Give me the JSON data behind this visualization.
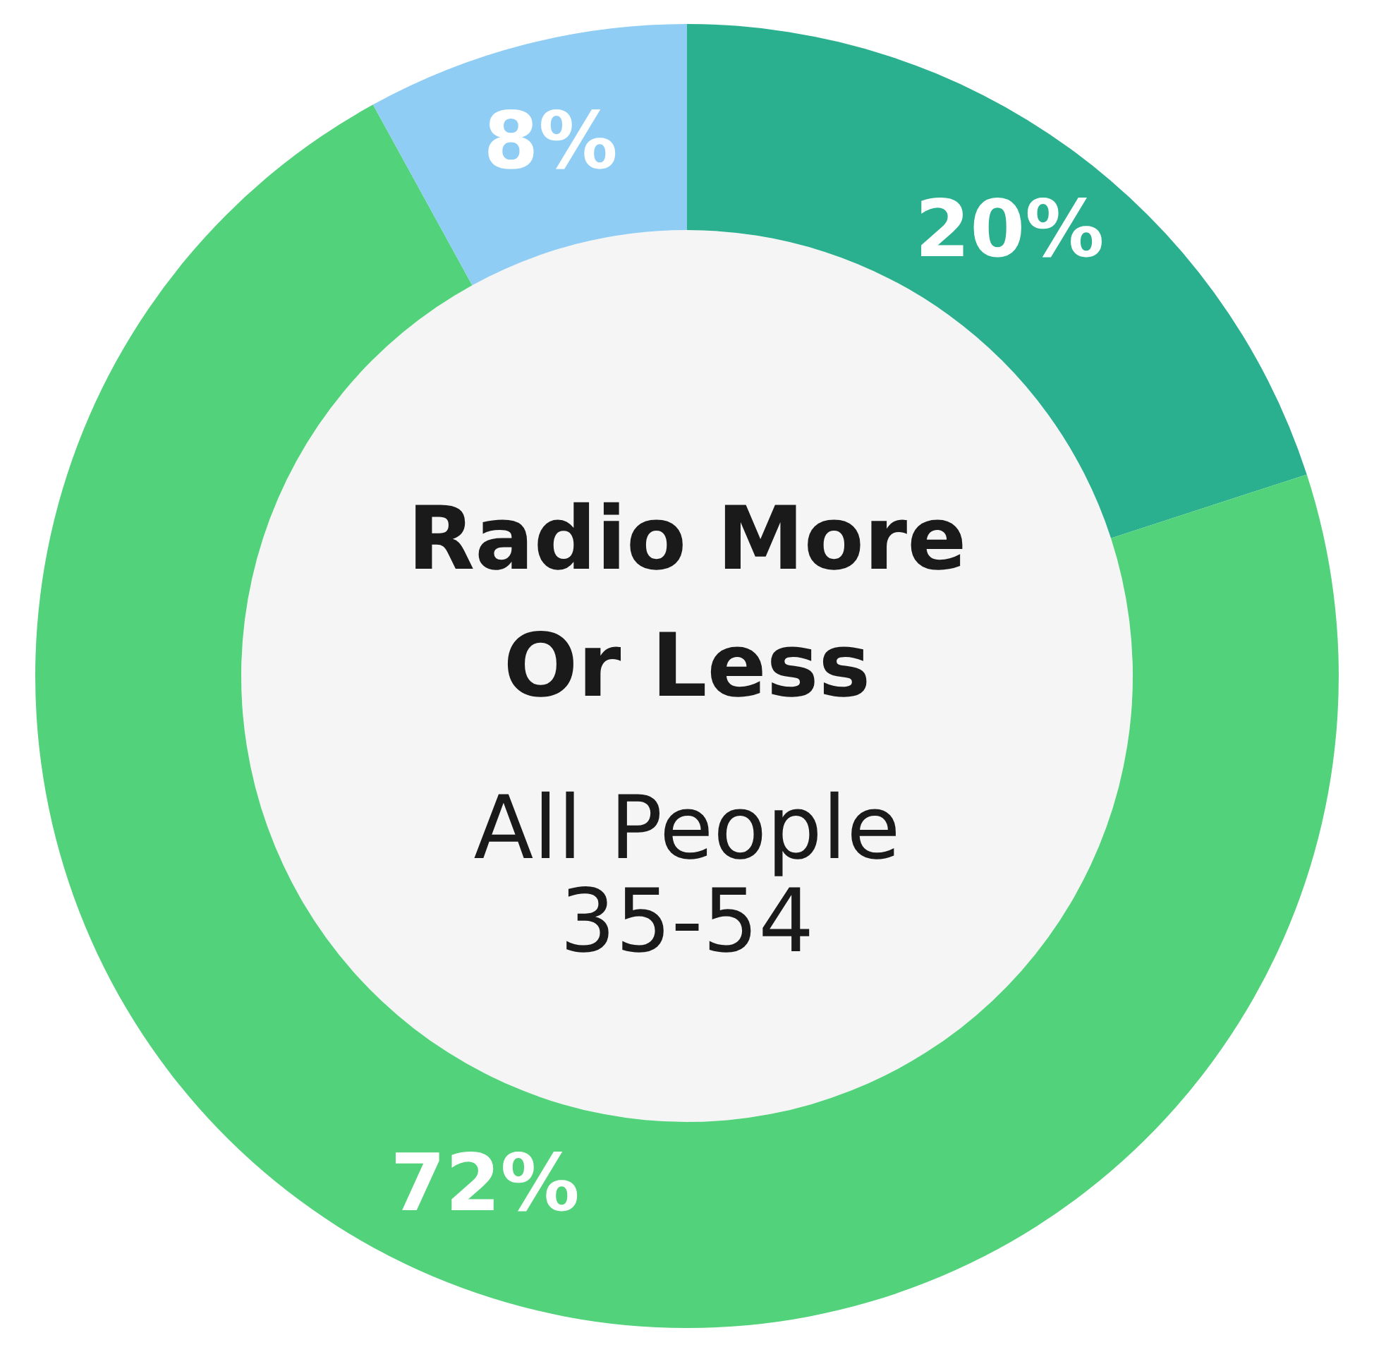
{
  "chart_data": {
    "type": "donut",
    "title": "Radio More Or Less",
    "subtitle": "All People 35-54",
    "categories": [
      null,
      null,
      null
    ],
    "values": [
      20,
      72,
      8
    ],
    "colors": [
      "#2bb08f",
      "#52d27a",
      "#8fcdf5"
    ],
    "value_labels": [
      "20%",
      "72%",
      "8%"
    ]
  }
}
